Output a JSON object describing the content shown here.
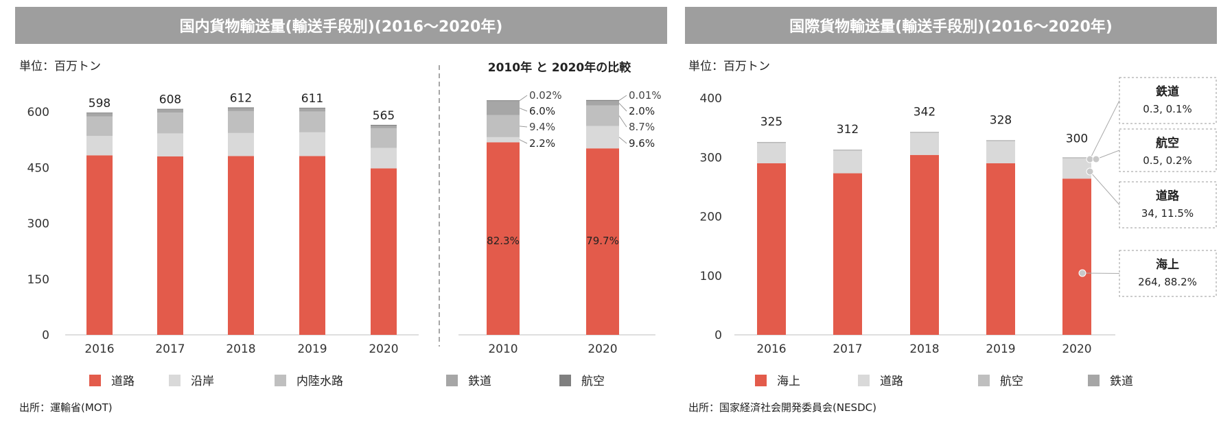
{
  "left_title": "国内貨物輸送量(輸送手段別)(2016～2020年)",
  "right_title": "国際貨物輸送量(輸送手段別)(2016～2020年)",
  "left_unit": "単位：百万トン",
  "right_unit": "単位：百万トン",
  "left_source": "出所：運輸省(MOT)",
  "right_source": "出所：国家経済社会開発委員会(NESDC)",
  "colors": {
    "road": "#e35b4b",
    "coastal": "#d9d9d9",
    "inland": "#bfbfbf",
    "rail": "#a6a6a6",
    "air": "#7f7f7f",
    "intl_sea": "#e35b4b",
    "intl_road": "#d9d9d9",
    "intl_air": "#bfbfbf",
    "intl_rail": "#a6a6a6"
  },
  "chart_data": [
    {
      "type": "bar",
      "stacked": true,
      "categories": [
        "2016",
        "2017",
        "2018",
        "2019",
        "2020"
      ],
      "yticks": [
        "0",
        "150",
        "300",
        "450",
        "600"
      ],
      "ylim": [
        0,
        600
      ],
      "totals": [
        "598",
        "608",
        "612",
        "611",
        "565"
      ],
      "series": [
        {
          "name": "道路",
          "values": [
            483,
            480,
            481,
            481,
            448
          ]
        },
        {
          "name": "沿岸",
          "values": [
            52,
            62,
            62,
            64,
            55
          ]
        },
        {
          "name": "内陸水路",
          "values": [
            53,
            56,
            59,
            56,
            53
          ]
        },
        {
          "name": "鉄道",
          "values": [
            8,
            8,
            8,
            8,
            7
          ]
        },
        {
          "name": "航空",
          "values": [
            2,
            2,
            2,
            2,
            2
          ]
        }
      ],
      "legend": "bottom"
    },
    {
      "type": "bar",
      "stacked": true,
      "title": "2010年 と 2020年の比較",
      "categories": [
        "2010",
        "2020"
      ],
      "series": [
        {
          "name": "道路",
          "values": [
            82.3,
            79.7
          ],
          "labels": [
            "82.3%",
            "79.7%"
          ]
        },
        {
          "name": "沿岸",
          "values": [
            2.2,
            9.6
          ],
          "labels": [
            "2.2%",
            "9.6%"
          ]
        },
        {
          "name": "内陸水路",
          "values": [
            9.4,
            8.7
          ],
          "labels": [
            "9.4%",
            "8.7%"
          ]
        },
        {
          "name": "鉄道",
          "values": [
            6.0,
            2.0
          ],
          "labels": [
            "6.0%",
            "2.0%"
          ]
        },
        {
          "name": "航空",
          "values": [
            0.02,
            0.01
          ],
          "labels": [
            "0.02%",
            "0.01%"
          ]
        }
      ]
    },
    {
      "type": "bar",
      "stacked": true,
      "categories": [
        "2016",
        "2017",
        "2018",
        "2019",
        "2020"
      ],
      "yticks": [
        "0",
        "100",
        "200",
        "300",
        "400"
      ],
      "ylim": [
        0,
        400
      ],
      "totals": [
        "325",
        "312",
        "342",
        "328",
        "300"
      ],
      "series": [
        {
          "name": "海上",
          "values": [
            290,
            273,
            304,
            290,
            264
          ]
        },
        {
          "name": "道路",
          "values": [
            34,
            38,
            37,
            37,
            34
          ]
        },
        {
          "name": "航空",
          "values": [
            0.5,
            0.5,
            0.5,
            0.5,
            0.5
          ]
        },
        {
          "name": "鉄道",
          "values": [
            0.5,
            0.5,
            0.5,
            0.5,
            0.3
          ]
        }
      ],
      "legend": "bottom",
      "callouts": [
        {
          "name": "鉄道",
          "value": "0.3, 0.1%"
        },
        {
          "name": "航空",
          "value": "0.5, 0.2%"
        },
        {
          "name": "道路",
          "value": "34, 11.5%"
        },
        {
          "name": "海上",
          "value": "264, 88.2%"
        }
      ]
    }
  ]
}
